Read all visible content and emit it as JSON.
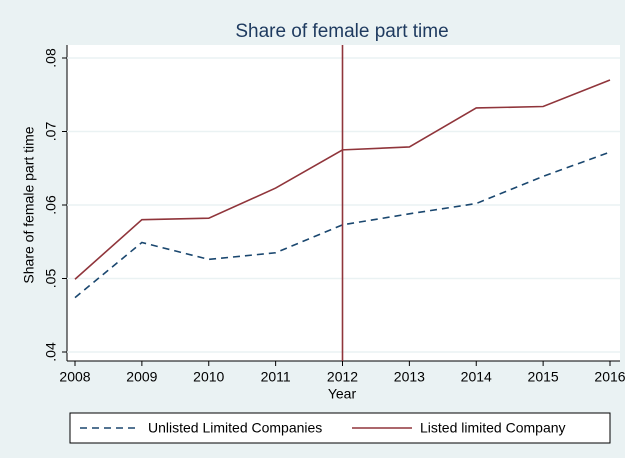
{
  "chart_data": {
    "type": "line",
    "title": "Share of female part time",
    "x_label": "Year",
    "y_label": "Share of female part time",
    "x": [
      2008,
      2009,
      2010,
      2011,
      2012,
      2013,
      2014,
      2015,
      2016
    ],
    "series": [
      {
        "name": "Unlisted Limited Companies",
        "color": "#1a476f",
        "dash": true,
        "values": [
          0.0474,
          0.0549,
          0.0526,
          0.0535,
          0.0573,
          0.0588,
          0.0602,
          0.0639,
          0.0672
        ]
      },
      {
        "name": "Listed limited Company",
        "color": "#90353b",
        "dash": false,
        "values": [
          0.0499,
          0.058,
          0.0582,
          0.0623,
          0.0675,
          0.0679,
          0.0732,
          0.0734,
          0.077
        ]
      }
    ],
    "vline": {
      "x": 2012,
      "color": "#90353b"
    },
    "xlim": [
      2008,
      2016
    ],
    "xticks": [
      2008,
      2009,
      2010,
      2011,
      2012,
      2013,
      2014,
      2015,
      2016
    ],
    "ylim": [
      0.04,
      0.08
    ],
    "yticks": [
      {
        "value": 0.04,
        "label": ".04"
      },
      {
        "value": 0.05,
        "label": ".05"
      },
      {
        "value": 0.06,
        "label": ".06"
      },
      {
        "value": 0.07,
        "label": ".07"
      },
      {
        "value": 0.08,
        "label": ".08"
      }
    ],
    "grid": true,
    "legend": "bottom"
  }
}
